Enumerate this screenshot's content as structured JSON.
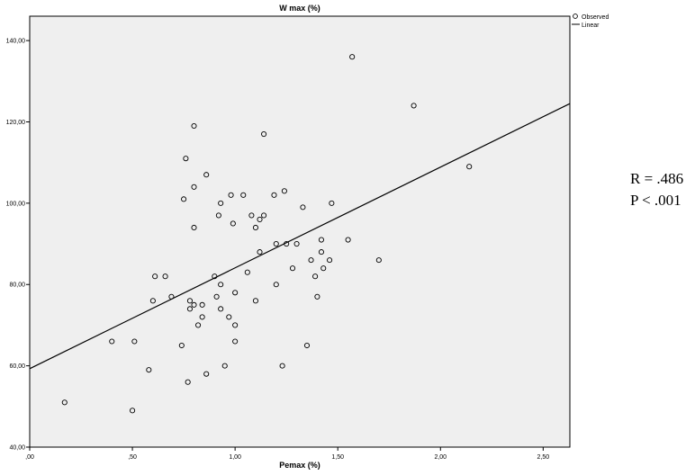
{
  "chart_data": {
    "type": "scatter",
    "title": "W max (%)",
    "xlabel": "Pemax (%)",
    "ylabel": "",
    "xlim": [
      0,
      2.63
    ],
    "ylim": [
      40,
      146
    ],
    "x_ticks": [
      0,
      0.5,
      1.0,
      1.5,
      2.0,
      2.5
    ],
    "x_tick_labels": [
      ",00",
      ",50",
      "1,00",
      "1,50",
      "2,00",
      "2,50"
    ],
    "y_ticks": [
      40,
      60,
      80,
      100,
      120,
      140
    ],
    "y_tick_labels": [
      "40,00",
      "60,00",
      "80,00",
      "100,00",
      "120,00",
      "140,00"
    ],
    "grid": false,
    "background": "#efefef",
    "legend": {
      "placement": "top-right-outside",
      "entries": [
        {
          "label": "Observed",
          "marker": "circle"
        },
        {
          "label": "Linear",
          "marker": "line"
        }
      ]
    },
    "series": [
      {
        "name": "Observed",
        "points": [
          [
            0.17,
            51
          ],
          [
            0.4,
            66
          ],
          [
            0.5,
            49
          ],
          [
            0.51,
            66
          ],
          [
            0.58,
            59
          ],
          [
            0.6,
            76
          ],
          [
            0.61,
            82
          ],
          [
            0.66,
            82
          ],
          [
            0.69,
            77
          ],
          [
            0.74,
            65
          ],
          [
            0.75,
            101
          ],
          [
            0.76,
            111
          ],
          [
            0.77,
            56
          ],
          [
            0.78,
            76
          ],
          [
            0.78,
            74
          ],
          [
            0.8,
            75
          ],
          [
            0.8,
            119
          ],
          [
            0.8,
            104
          ],
          [
            0.8,
            94
          ],
          [
            0.82,
            70
          ],
          [
            0.84,
            75
          ],
          [
            0.84,
            72
          ],
          [
            0.86,
            107
          ],
          [
            0.86,
            58
          ],
          [
            0.9,
            82
          ],
          [
            0.91,
            77
          ],
          [
            0.92,
            97
          ],
          [
            0.93,
            100
          ],
          [
            0.93,
            80
          ],
          [
            0.93,
            74
          ],
          [
            0.95,
            60
          ],
          [
            0.97,
            72
          ],
          [
            0.98,
            102
          ],
          [
            0.99,
            95
          ],
          [
            1.0,
            78
          ],
          [
            1.0,
            70
          ],
          [
            1.0,
            66
          ],
          [
            1.04,
            102
          ],
          [
            1.06,
            83
          ],
          [
            1.08,
            97
          ],
          [
            1.1,
            94
          ],
          [
            1.1,
            76
          ],
          [
            1.12,
            96
          ],
          [
            1.12,
            88
          ],
          [
            1.14,
            97
          ],
          [
            1.14,
            117
          ],
          [
            1.19,
            102
          ],
          [
            1.2,
            90
          ],
          [
            1.2,
            80
          ],
          [
            1.23,
            60
          ],
          [
            1.24,
            103
          ],
          [
            1.25,
            90
          ],
          [
            1.28,
            84
          ],
          [
            1.3,
            90
          ],
          [
            1.33,
            99
          ],
          [
            1.35,
            65
          ],
          [
            1.37,
            86
          ],
          [
            1.39,
            82
          ],
          [
            1.4,
            77
          ],
          [
            1.42,
            91
          ],
          [
            1.42,
            88
          ],
          [
            1.43,
            84
          ],
          [
            1.46,
            86
          ],
          [
            1.47,
            100
          ],
          [
            1.55,
            91
          ],
          [
            1.57,
            136
          ],
          [
            1.7,
            86
          ],
          [
            1.87,
            124
          ],
          [
            2.14,
            109
          ]
        ]
      },
      {
        "name": "Linear",
        "line": {
          "x": [
            0,
            2.63
          ],
          "y": [
            59.3,
            124.5
          ]
        }
      }
    ]
  },
  "annotations": {
    "r_text": "R = .486",
    "p_text": "P < .001"
  }
}
